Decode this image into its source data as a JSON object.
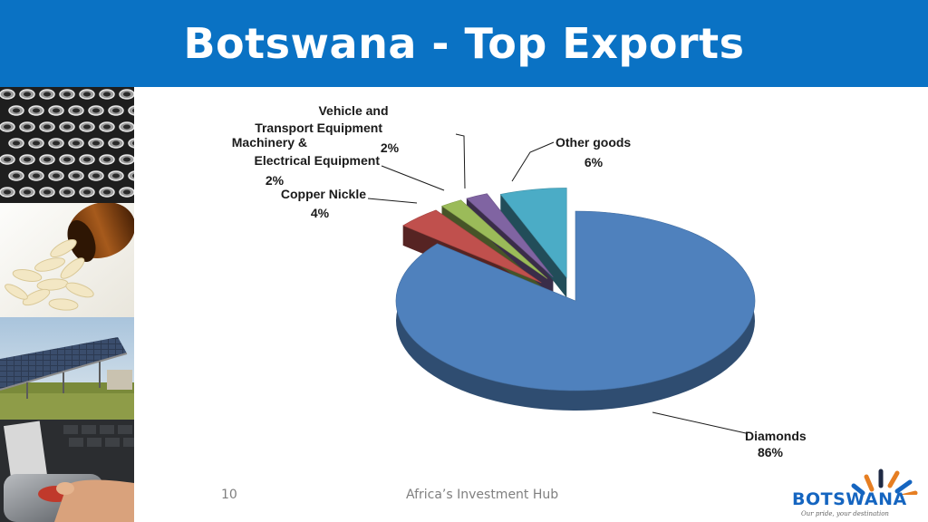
{
  "slide": {
    "title": "Botswana - Top Exports",
    "page_number": "10",
    "footer_text": "Africa’s Investment Hub",
    "logo_word": "BOTSWANA",
    "logo_tagline": "Our pride, your destination"
  },
  "photos": [
    {
      "name": "photo-bottles-icon"
    },
    {
      "name": "photo-pills-icon"
    },
    {
      "name": "photo-solar-panels-icon"
    },
    {
      "name": "photo-fingerprint-scanner-icon"
    }
  ],
  "colors": {
    "header": "#0a72c4",
    "diamonds": "#4f81bd",
    "copper": "#c0504d",
    "machinery": "#9bbb59",
    "vehicle": "#8064a2",
    "other": "#4bacc6"
  },
  "chart_data": {
    "type": "pie",
    "title": "",
    "style": "3d-exploded",
    "slices": [
      {
        "label": "Diamonds",
        "value": 86,
        "value_label": "86%",
        "color": "#4f81bd"
      },
      {
        "label": "Copper Nickle",
        "value": 4,
        "value_label": "4%",
        "color": "#c0504d"
      },
      {
        "label": "Machinery & Electrical Equipment",
        "label_lines": [
          "Machinery &",
          "Electrical Equipment"
        ],
        "value": 2,
        "value_label": "2%",
        "color": "#9bbb59"
      },
      {
        "label": "Vehicle and Transport Equipment",
        "label_lines": [
          "Vehicle and",
          "Transport Equipment"
        ],
        "value": 2,
        "value_label": "2%",
        "color": "#8064a2"
      },
      {
        "label": "Other goods",
        "value": 6,
        "value_label": "6%",
        "color": "#4bacc6"
      }
    ]
  }
}
